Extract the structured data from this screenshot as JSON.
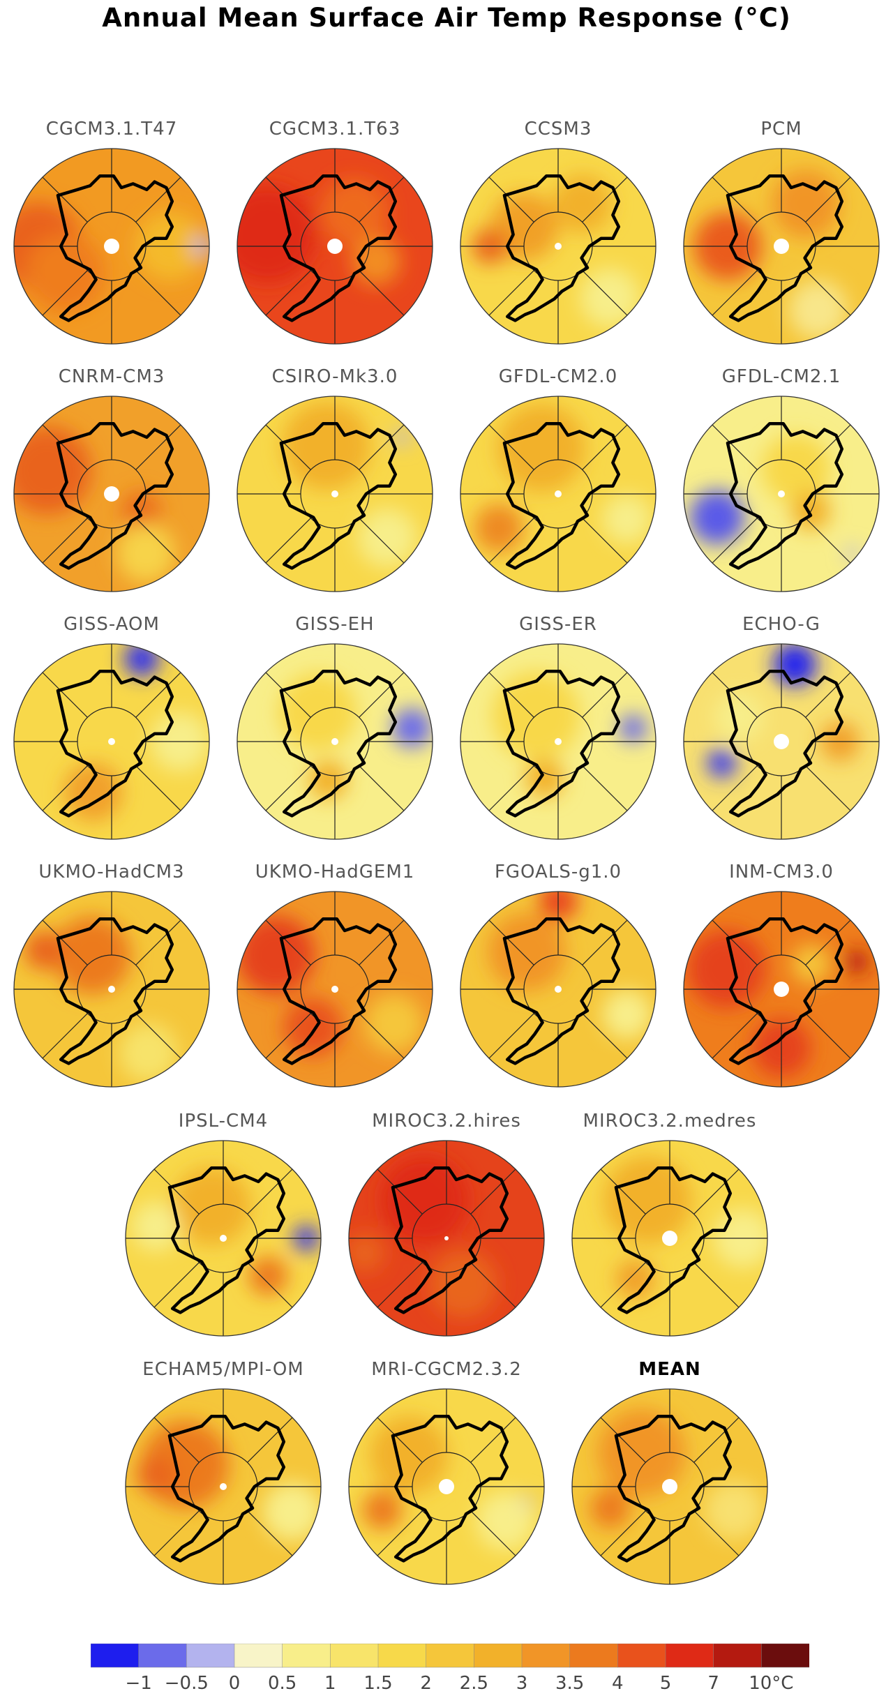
{
  "title": "Annual Mean Surface Air Temp Response (°C)",
  "panels": [
    {
      "name": "CGCM3.1.T47",
      "base": "#f29a22",
      "blobs": [
        {
          "c": "#e9621b",
          "a": -180,
          "r": 0.75,
          "s": 0.45
        },
        {
          "c": "#ef7d1c",
          "a": 150,
          "r": 0.55,
          "s": 0.4
        },
        {
          "c": "#f4ba2a",
          "a": 0,
          "r": 0.6,
          "s": 0.35
        },
        {
          "c": "#b3b3ee",
          "a": 0,
          "r": 0.93,
          "s": 0.1
        }
      ],
      "pole": "large"
    },
    {
      "name": "CGCM3.1.T63",
      "base": "#e9461c",
      "blobs": [
        {
          "c": "#df2a16",
          "a": -170,
          "r": 0.7,
          "s": 0.5
        },
        {
          "c": "#ee6a1c",
          "a": -60,
          "r": 0.4,
          "s": 0.35
        },
        {
          "c": "#f28d21",
          "a": 20,
          "r": 0.45,
          "s": 0.25
        }
      ],
      "pole": "large"
    },
    {
      "name": "CCSM3",
      "base": "#f8d84a",
      "blobs": [
        {
          "c": "#f1a028",
          "a": -150,
          "r": 0.4,
          "s": 0.35
        },
        {
          "c": "#e9651c",
          "a": -180,
          "r": 0.7,
          "s": 0.18
        },
        {
          "c": "#f2b12a",
          "a": -60,
          "r": 0.5,
          "s": 0.3
        },
        {
          "c": "#f7ee8a",
          "a": 45,
          "r": 0.75,
          "s": 0.3
        }
      ],
      "pole": "small"
    },
    {
      "name": "PCM",
      "base": "#f5c63a",
      "blobs": [
        {
          "c": "#ea5b1c",
          "a": 180,
          "r": 0.55,
          "s": 0.35
        },
        {
          "c": "#f19527",
          "a": -60,
          "r": 0.5,
          "s": 0.35
        },
        {
          "c": "#f8e68a",
          "a": 60,
          "r": 0.75,
          "s": 0.3
        }
      ],
      "pole": "large"
    },
    {
      "name": "CNRM-CM3",
      "base": "#f1a02a",
      "blobs": [
        {
          "c": "#e9631c",
          "a": -160,
          "r": 0.7,
          "s": 0.45
        },
        {
          "c": "#eb6d1e",
          "a": 30,
          "r": 0.35,
          "s": 0.2
        },
        {
          "c": "#f7d34a",
          "a": 60,
          "r": 0.7,
          "s": 0.3
        }
      ],
      "pole": "large"
    },
    {
      "name": "CSIRO-Mk3.0",
      "base": "#f8d84a",
      "blobs": [
        {
          "c": "#f2b12a",
          "a": -100,
          "r": 0.5,
          "s": 0.45
        },
        {
          "c": "#f7ee8a",
          "a": 40,
          "r": 0.7,
          "s": 0.3
        },
        {
          "c": "#b3b3ee",
          "a": -40,
          "r": 0.9,
          "s": 0.08
        }
      ],
      "pole": "small"
    },
    {
      "name": "GFDL-CM2.0",
      "base": "#f8d84a",
      "blobs": [
        {
          "c": "#f2b12a",
          "a": -110,
          "r": 0.5,
          "s": 0.45
        },
        {
          "c": "#ee8a22",
          "a": 150,
          "r": 0.7,
          "s": 0.25
        },
        {
          "c": "#f7ee8a",
          "a": 20,
          "r": 0.75,
          "s": 0.25
        }
      ],
      "pole": "small"
    },
    {
      "name": "GFDL-CM2.1",
      "base": "#f8ee8a",
      "blobs": [
        {
          "c": "#5a5ae8",
          "a": 160,
          "r": 0.7,
          "s": 0.28
        },
        {
          "c": "#f8d84a",
          "a": -60,
          "r": 0.3,
          "s": 0.35
        },
        {
          "c": "#f2b12a",
          "a": 30,
          "r": 0.35,
          "s": 0.2
        },
        {
          "c": "#b3b3ee",
          "a": 40,
          "r": 0.95,
          "s": 0.07
        }
      ],
      "pole": "small"
    },
    {
      "name": "GISS-AOM",
      "base": "#f8d84a",
      "blobs": [
        {
          "c": "#3333ee",
          "a": -70,
          "r": 0.9,
          "s": 0.18
        },
        {
          "c": "#f1a02a",
          "a": 110,
          "r": 0.55,
          "s": 0.3
        },
        {
          "c": "#f7ee8a",
          "a": 0,
          "r": 0.7,
          "s": 0.3
        }
      ],
      "pole": "small"
    },
    {
      "name": "GISS-EH",
      "base": "#f8ee8a",
      "blobs": [
        {
          "c": "#6b6bea",
          "a": -10,
          "r": 0.8,
          "s": 0.2
        },
        {
          "c": "#f8d84a",
          "a": -120,
          "r": 0.35,
          "s": 0.4
        },
        {
          "c": "#f2b12a",
          "a": 100,
          "r": 0.4,
          "s": 0.2
        }
      ],
      "pole": "small"
    },
    {
      "name": "GISS-ER",
      "base": "#f8ee8a",
      "blobs": [
        {
          "c": "#6b6bea",
          "a": -10,
          "r": 0.78,
          "s": 0.14
        },
        {
          "c": "#f8d84a",
          "a": -130,
          "r": 0.35,
          "s": 0.45
        },
        {
          "c": "#f2b12a",
          "a": 110,
          "r": 0.4,
          "s": 0.2
        }
      ],
      "pole": "small"
    },
    {
      "name": "ECHO-G",
      "base": "#f8e070",
      "blobs": [
        {
          "c": "#2323ef",
          "a": -80,
          "r": 0.8,
          "s": 0.22
        },
        {
          "c": "#3c3cef",
          "a": 160,
          "r": 0.65,
          "s": 0.15
        },
        {
          "c": "#f1a02a",
          "a": 0,
          "r": 0.6,
          "s": 0.2
        },
        {
          "c": "#f7ee8a",
          "a": -150,
          "r": 0.5,
          "s": 0.25
        }
      ],
      "pole": "large"
    },
    {
      "name": "UKMO-HadCM3",
      "base": "#f5c63a",
      "blobs": [
        {
          "c": "#ec7a1e",
          "a": -120,
          "r": 0.4,
          "s": 0.4
        },
        {
          "c": "#e9651c",
          "a": -150,
          "r": 0.8,
          "s": 0.2
        },
        {
          "c": "#f7e36a",
          "a": 60,
          "r": 0.75,
          "s": 0.3
        }
      ],
      "pole": "small"
    },
    {
      "name": "UKMO-HadGEM1",
      "base": "#f19527",
      "blobs": [
        {
          "c": "#e5431b",
          "a": -150,
          "r": 0.7,
          "s": 0.4
        },
        {
          "c": "#e9521c",
          "a": 120,
          "r": 0.45,
          "s": 0.3
        },
        {
          "c": "#f5c63a",
          "a": 30,
          "r": 0.7,
          "s": 0.3
        }
      ],
      "pole": "small"
    },
    {
      "name": "FGOALS-g1.0",
      "base": "#f5c63a",
      "blobs": [
        {
          "c": "#e9461c",
          "a": -90,
          "r": 0.9,
          "s": 0.2
        },
        {
          "c": "#f19527",
          "a": -130,
          "r": 0.5,
          "s": 0.4
        },
        {
          "c": "#f8ee8a",
          "a": 20,
          "r": 0.75,
          "s": 0.25
        }
      ],
      "pole": "small"
    },
    {
      "name": "INM-CM3.0",
      "base": "#ef7d1c",
      "blobs": [
        {
          "c": "#b41a10",
          "a": -20,
          "r": 0.82,
          "s": 0.12
        },
        {
          "c": "#e5431b",
          "a": -160,
          "r": 0.6,
          "s": 0.4
        },
        {
          "c": "#e5431b",
          "a": 90,
          "r": 0.6,
          "s": 0.3
        },
        {
          "c": "#f5c63a",
          "a": -40,
          "r": 0.4,
          "s": 0.2
        }
      ],
      "pole": "large"
    },
    {
      "name": "IPSL-CM4",
      "base": "#f8d84a",
      "blobs": [
        {
          "c": "#3333ee",
          "a": 0,
          "r": 0.85,
          "s": 0.13
        },
        {
          "c": "#ec7a1e",
          "a": 40,
          "r": 0.6,
          "s": 0.2
        },
        {
          "c": "#f2b12a",
          "a": -110,
          "r": 0.35,
          "s": 0.4
        },
        {
          "c": "#f7ee8a",
          "a": -170,
          "r": 0.7,
          "s": 0.25
        }
      ],
      "pole": "small"
    },
    {
      "name": "MIROC3.2.hires",
      "base": "#e5431b",
      "blobs": [
        {
          "c": "#df2a16",
          "a": -120,
          "r": 0.45,
          "s": 0.45
        },
        {
          "c": "#e9651c",
          "a": 70,
          "r": 0.5,
          "s": 0.35
        },
        {
          "c": "#e9631c",
          "a": 170,
          "r": 0.85,
          "s": 0.2
        }
      ],
      "pole": "tiny"
    },
    {
      "name": "MIROC3.2.medres",
      "base": "#f8d84a",
      "blobs": [
        {
          "c": "#f2b12a",
          "a": -120,
          "r": 0.45,
          "s": 0.45
        },
        {
          "c": "#f1a02a",
          "a": 130,
          "r": 0.55,
          "s": 0.2
        },
        {
          "c": "#f8ee8a",
          "a": 0,
          "r": 0.75,
          "s": 0.3
        }
      ],
      "pole": "large"
    },
    {
      "name": "ECHAM5/MPI-OM",
      "base": "#f5c63a",
      "blobs": [
        {
          "c": "#ec7a1e",
          "a": -150,
          "r": 0.45,
          "s": 0.45
        },
        {
          "c": "#e9651c",
          "a": -170,
          "r": 0.7,
          "s": 0.2
        },
        {
          "c": "#f8ee8a",
          "a": 20,
          "r": 0.75,
          "s": 0.3
        }
      ],
      "pole": "small"
    },
    {
      "name": "MRI-CGCM2.3.2",
      "base": "#f8d84a",
      "blobs": [
        {
          "c": "#f2b12a",
          "a": -140,
          "r": 0.5,
          "s": 0.4
        },
        {
          "c": "#ec7a1e",
          "a": 160,
          "r": 0.7,
          "s": 0.2
        },
        {
          "c": "#f8ee8a",
          "a": 30,
          "r": 0.7,
          "s": 0.3
        },
        {
          "c": "#b3b3ee",
          "a": 10,
          "r": 0.85,
          "s": 0.05
        }
      ],
      "pole": "large"
    },
    {
      "name": "MEAN",
      "base": "#f5c63a",
      "blobs": [
        {
          "c": "#f19527",
          "a": -130,
          "r": 0.45,
          "s": 0.45
        },
        {
          "c": "#ec7a1e",
          "a": 160,
          "r": 0.65,
          "s": 0.2
        },
        {
          "c": "#f8e070",
          "a": 20,
          "r": 0.7,
          "s": 0.3
        }
      ],
      "pole": "large",
      "bold": true
    }
  ],
  "colorbar": {
    "colors": [
      "#1e1eee",
      "#6b6bea",
      "#b3b3ee",
      "#f8f4c8",
      "#f8ee8a",
      "#f8e46a",
      "#f7d94a",
      "#f5c63a",
      "#f2b12a",
      "#f19527",
      "#ec7a1e",
      "#e9521c",
      "#df2a16",
      "#b41a10",
      "#6b0d0d"
    ],
    "ticks": [
      "−1",
      "−0.5",
      "0",
      "0.5",
      "1",
      "1.5",
      "2",
      "2.5",
      "3",
      "3.5",
      "4",
      "5",
      "7",
      "10°C"
    ]
  }
}
